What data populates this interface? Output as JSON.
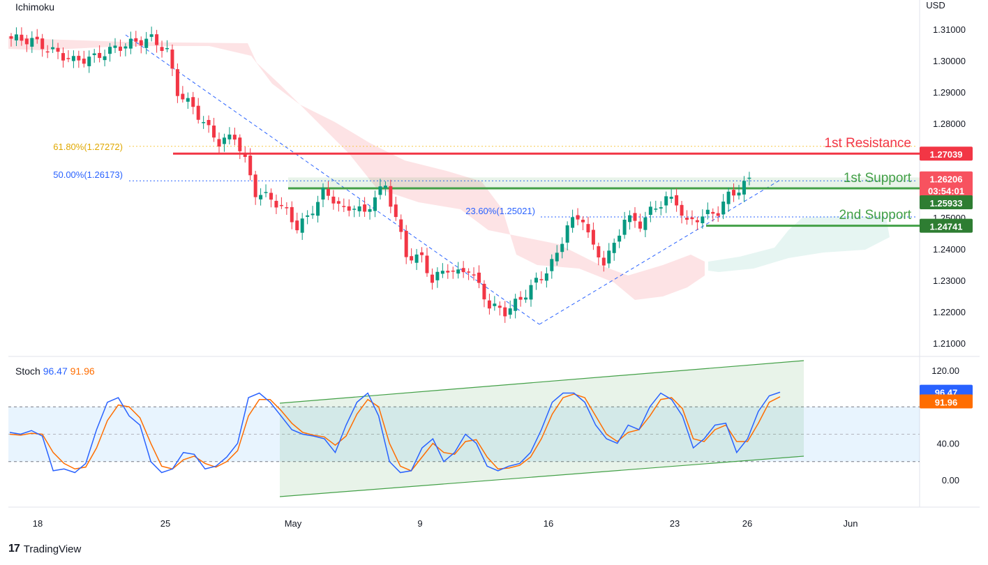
{
  "header": {
    "indicator": "Ichimoku",
    "currency": "USD"
  },
  "price_axis": {
    "ticks": [
      "1.31000",
      "1.30000",
      "1.29000",
      "1.28000",
      "1.27000",
      "1.26000",
      "1.25000",
      "1.24000",
      "1.23000",
      "1.22000",
      "1.21000"
    ]
  },
  "stoch_axis": {
    "ticks": [
      "120.00",
      "40.00",
      "0.00"
    ]
  },
  "time_axis": {
    "labels": [
      "18",
      "25",
      "May",
      "9",
      "16",
      "23",
      "26",
      "Jun"
    ]
  },
  "fib": {
    "f618": "61.80%(1.27272)",
    "f50": "50.00%(1.26173)",
    "f236": "23.60%(1.25021)"
  },
  "annotations": {
    "res1": "1st Resistance",
    "sup1": "1st Support",
    "sup2": "2nd Support"
  },
  "badges": {
    "res1": "1.27039",
    "last": "1.26206",
    "countdown": "03:54:01",
    "sup1": "1.25933",
    "sup2": "1.24741",
    "stoch_k": "96.47",
    "stoch_d": "91.96"
  },
  "stoch": {
    "name": "Stoch",
    "k": "96.47",
    "d": "91.96"
  },
  "brand": {
    "name": "TradingView"
  },
  "colors": {
    "up": "#089981",
    "down": "#f23645",
    "resistance": "#f23645",
    "support": "#43a047",
    "k": "#2962ff",
    "d": "#ff6d00",
    "fib_618": "#f7c948",
    "fib_50": "#2962ff"
  },
  "chart_data": {
    "type": "candlestick",
    "symbol_indicator": "Ichimoku",
    "y_unit": "USD",
    "ylim": [
      1.205,
      1.315
    ],
    "levels": {
      "1st Resistance": 1.27039,
      "1st Support": 1.25933,
      "2nd Support": 1.24741,
      "last": 1.26206
    },
    "fibonacci": {
      "61.80%": 1.27272,
      "50.00%": 1.26173,
      "23.60%": 1.25021
    },
    "close_path": [
      [
        0,
        1.307
      ],
      [
        4,
        1.3065
      ],
      [
        8,
        1.303
      ],
      [
        12,
        1.3
      ],
      [
        16,
        1.301
      ],
      [
        20,
        1.304
      ],
      [
        24,
        1.306
      ],
      [
        27,
        1.307
      ],
      [
        30,
        1.303
      ],
      [
        32,
        1.29
      ],
      [
        35,
        1.285
      ],
      [
        38,
        1.278
      ],
      [
        40,
        1.274
      ],
      [
        43,
        1.276
      ],
      [
        45,
        1.268
      ],
      [
        47,
        1.258
      ],
      [
        50,
        1.256
      ],
      [
        53,
        1.252
      ],
      [
        55,
        1.247
      ],
      [
        57,
        1.25
      ],
      [
        60,
        1.258
      ],
      [
        62,
        1.256
      ],
      [
        64,
        1.252
      ],
      [
        66,
        1.254
      ],
      [
        68,
        1.251
      ],
      [
        70,
        1.257
      ],
      [
        72,
        1.26
      ],
      [
        74,
        1.25
      ],
      [
        76,
        1.238
      ],
      [
        79,
        1.237
      ],
      [
        81,
        1.23
      ],
      [
        84,
        1.234
      ],
      [
        86,
        1.232
      ],
      [
        88,
        1.234
      ],
      [
        90,
        1.228
      ],
      [
        92,
        1.222
      ],
      [
        95,
        1.22
      ],
      [
        98,
        1.224
      ],
      [
        100,
        1.228
      ],
      [
        102,
        1.231
      ],
      [
        105,
        1.238
      ],
      [
        107,
        1.248
      ],
      [
        110,
        1.25
      ],
      [
        112,
        1.24
      ],
      [
        114,
        1.236
      ],
      [
        116,
        1.241
      ],
      [
        118,
        1.25
      ],
      [
        121,
        1.248
      ],
      [
        123,
        1.252
      ],
      [
        126,
        1.256
      ],
      [
        128,
        1.255
      ],
      [
        130,
        1.248
      ],
      [
        132,
        1.25
      ],
      [
        134,
        1.251
      ],
      [
        136,
        1.252
      ],
      [
        138,
        1.257
      ],
      [
        140,
        1.259
      ],
      [
        142,
        1.262
      ]
    ],
    "stochastic": {
      "k_last": 96.47,
      "d_last": 91.96,
      "ylim": [
        -20,
        125
      ],
      "upper_band": 80,
      "lower_band": 20,
      "k": [
        52,
        50,
        54,
        48,
        10,
        12,
        8,
        18,
        55,
        85,
        90,
        70,
        60,
        20,
        8,
        12,
        30,
        28,
        12,
        15,
        25,
        40,
        90,
        95,
        85,
        70,
        55,
        50,
        48,
        45,
        30,
        60,
        85,
        95,
        70,
        20,
        8,
        10,
        35,
        45,
        20,
        30,
        50,
        40,
        15,
        10,
        15,
        18,
        30,
        55,
        85,
        95,
        95,
        85,
        60,
        45,
        40,
        60,
        55,
        80,
        95,
        88,
        70,
        35,
        45,
        60,
        62,
        30,
        45,
        75,
        92,
        96
      ],
      "d": [
        50,
        49,
        51,
        50,
        30,
        18,
        12,
        14,
        35,
        65,
        82,
        80,
        68,
        40,
        15,
        12,
        22,
        26,
        18,
        14,
        20,
        32,
        70,
        88,
        88,
        76,
        62,
        52,
        49,
        47,
        38,
        48,
        72,
        88,
        80,
        40,
        15,
        10,
        25,
        40,
        30,
        28,
        42,
        44,
        25,
        12,
        13,
        16,
        25,
        45,
        72,
        90,
        94,
        90,
        70,
        50,
        42,
        52,
        55,
        70,
        88,
        90,
        78,
        45,
        42,
        55,
        60,
        42,
        42,
        62,
        85,
        91
      ]
    }
  }
}
